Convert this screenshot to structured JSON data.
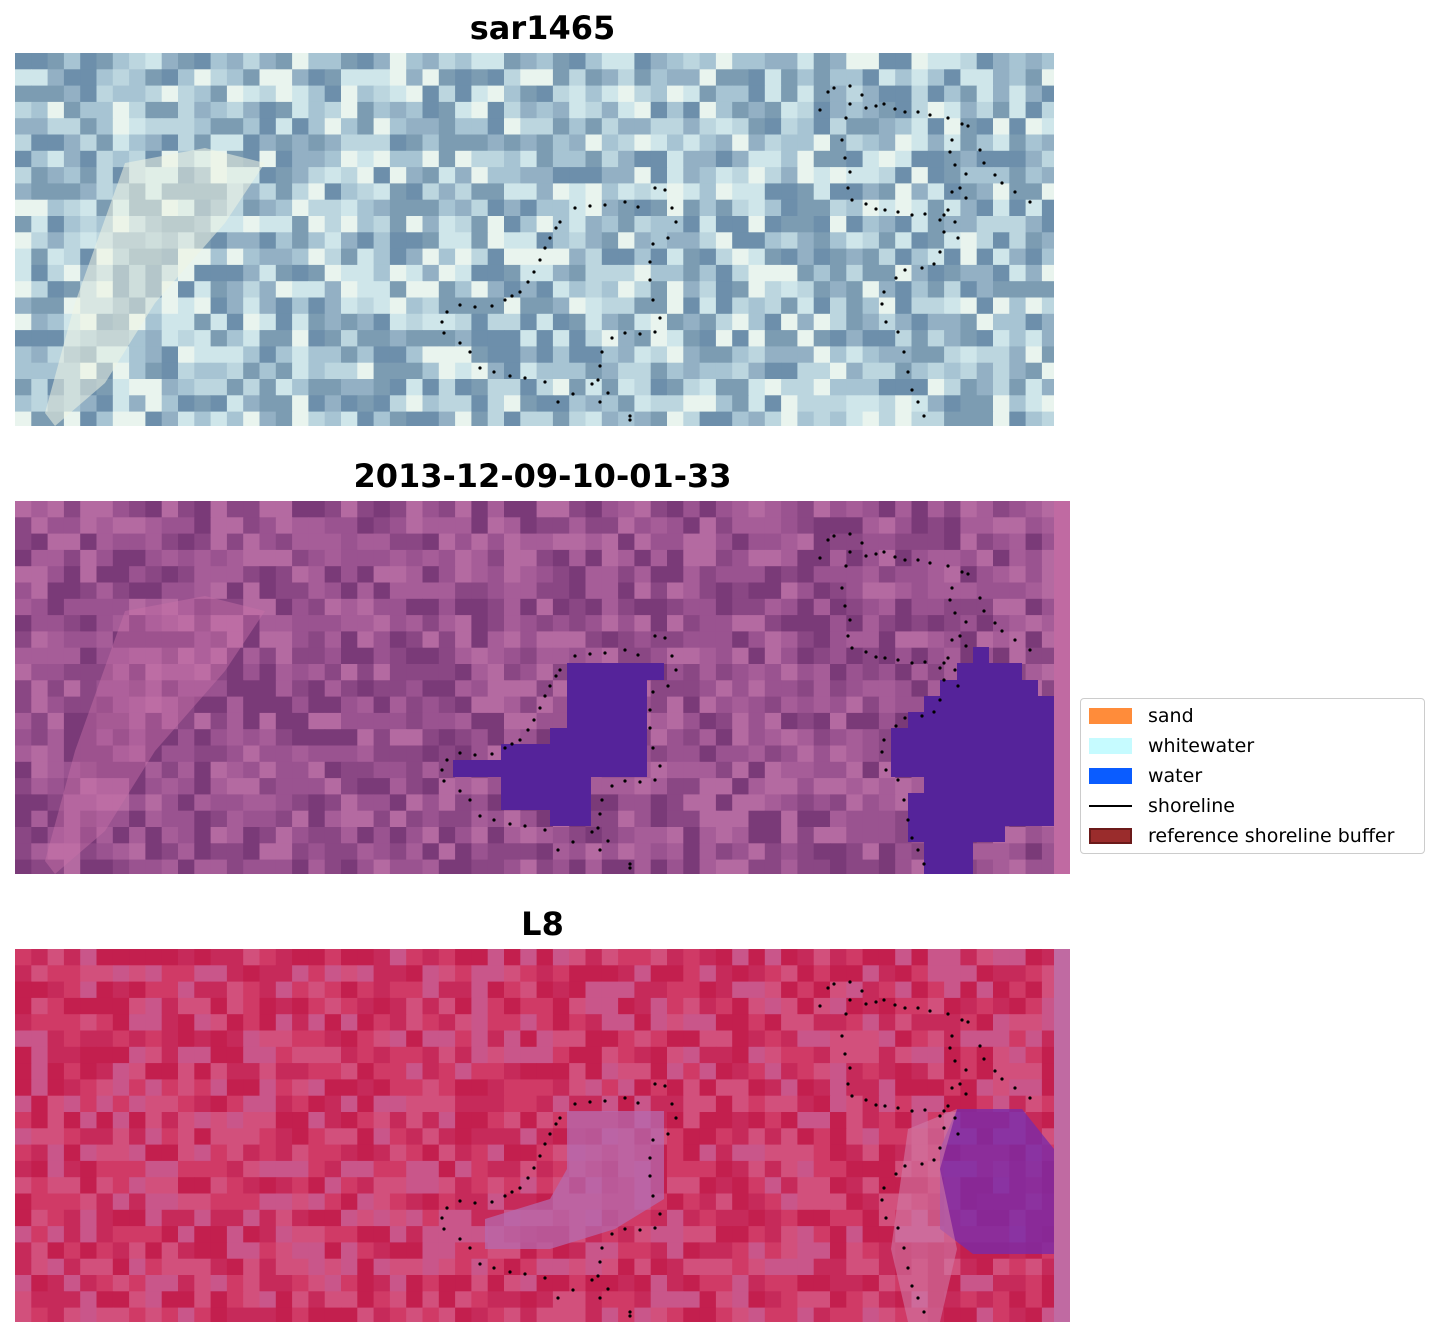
{
  "panels": [
    {
      "title": "sar1465",
      "image": "rgb-satellite-image"
    },
    {
      "title": "2013-12-09-10-01-33",
      "image": "classified-image-overlay"
    },
    {
      "title": "L8",
      "image": "index-image-overlay"
    }
  ],
  "legend": {
    "items": [
      {
        "label": "sand",
        "color": "#ff8c3a",
        "kind": "patch"
      },
      {
        "label": "whitewater",
        "color": "#c6fbff",
        "kind": "patch"
      },
      {
        "label": "water",
        "color": "#0a5cff",
        "kind": "patch"
      },
      {
        "label": "shoreline",
        "color": "#000000",
        "kind": "line"
      },
      {
        "label": "reference shoreline buffer",
        "color": "#9a2c2c",
        "kind": "patch",
        "edge": "#6b1a1a"
      }
    ]
  },
  "colors": {
    "panel1_palette": [
      "#7c9cb2",
      "#93b0c4",
      "#a7c4d3",
      "#bcd6df",
      "#cfe6ea",
      "#e9f4ee",
      "#6d8fab"
    ],
    "panel2_palette": [
      "#7a3a78",
      "#8a4784",
      "#9a5390",
      "#a65d98",
      "#b46aa1"
    ],
    "panel2_water": "#55239a",
    "panel3_palette": [
      "#c62a5a",
      "#d03a66",
      "#c31f4e",
      "#d2507c",
      "#c9568a"
    ],
    "panel3_purple": "#7a2aa8",
    "shoreline_dots": "#000000"
  }
}
